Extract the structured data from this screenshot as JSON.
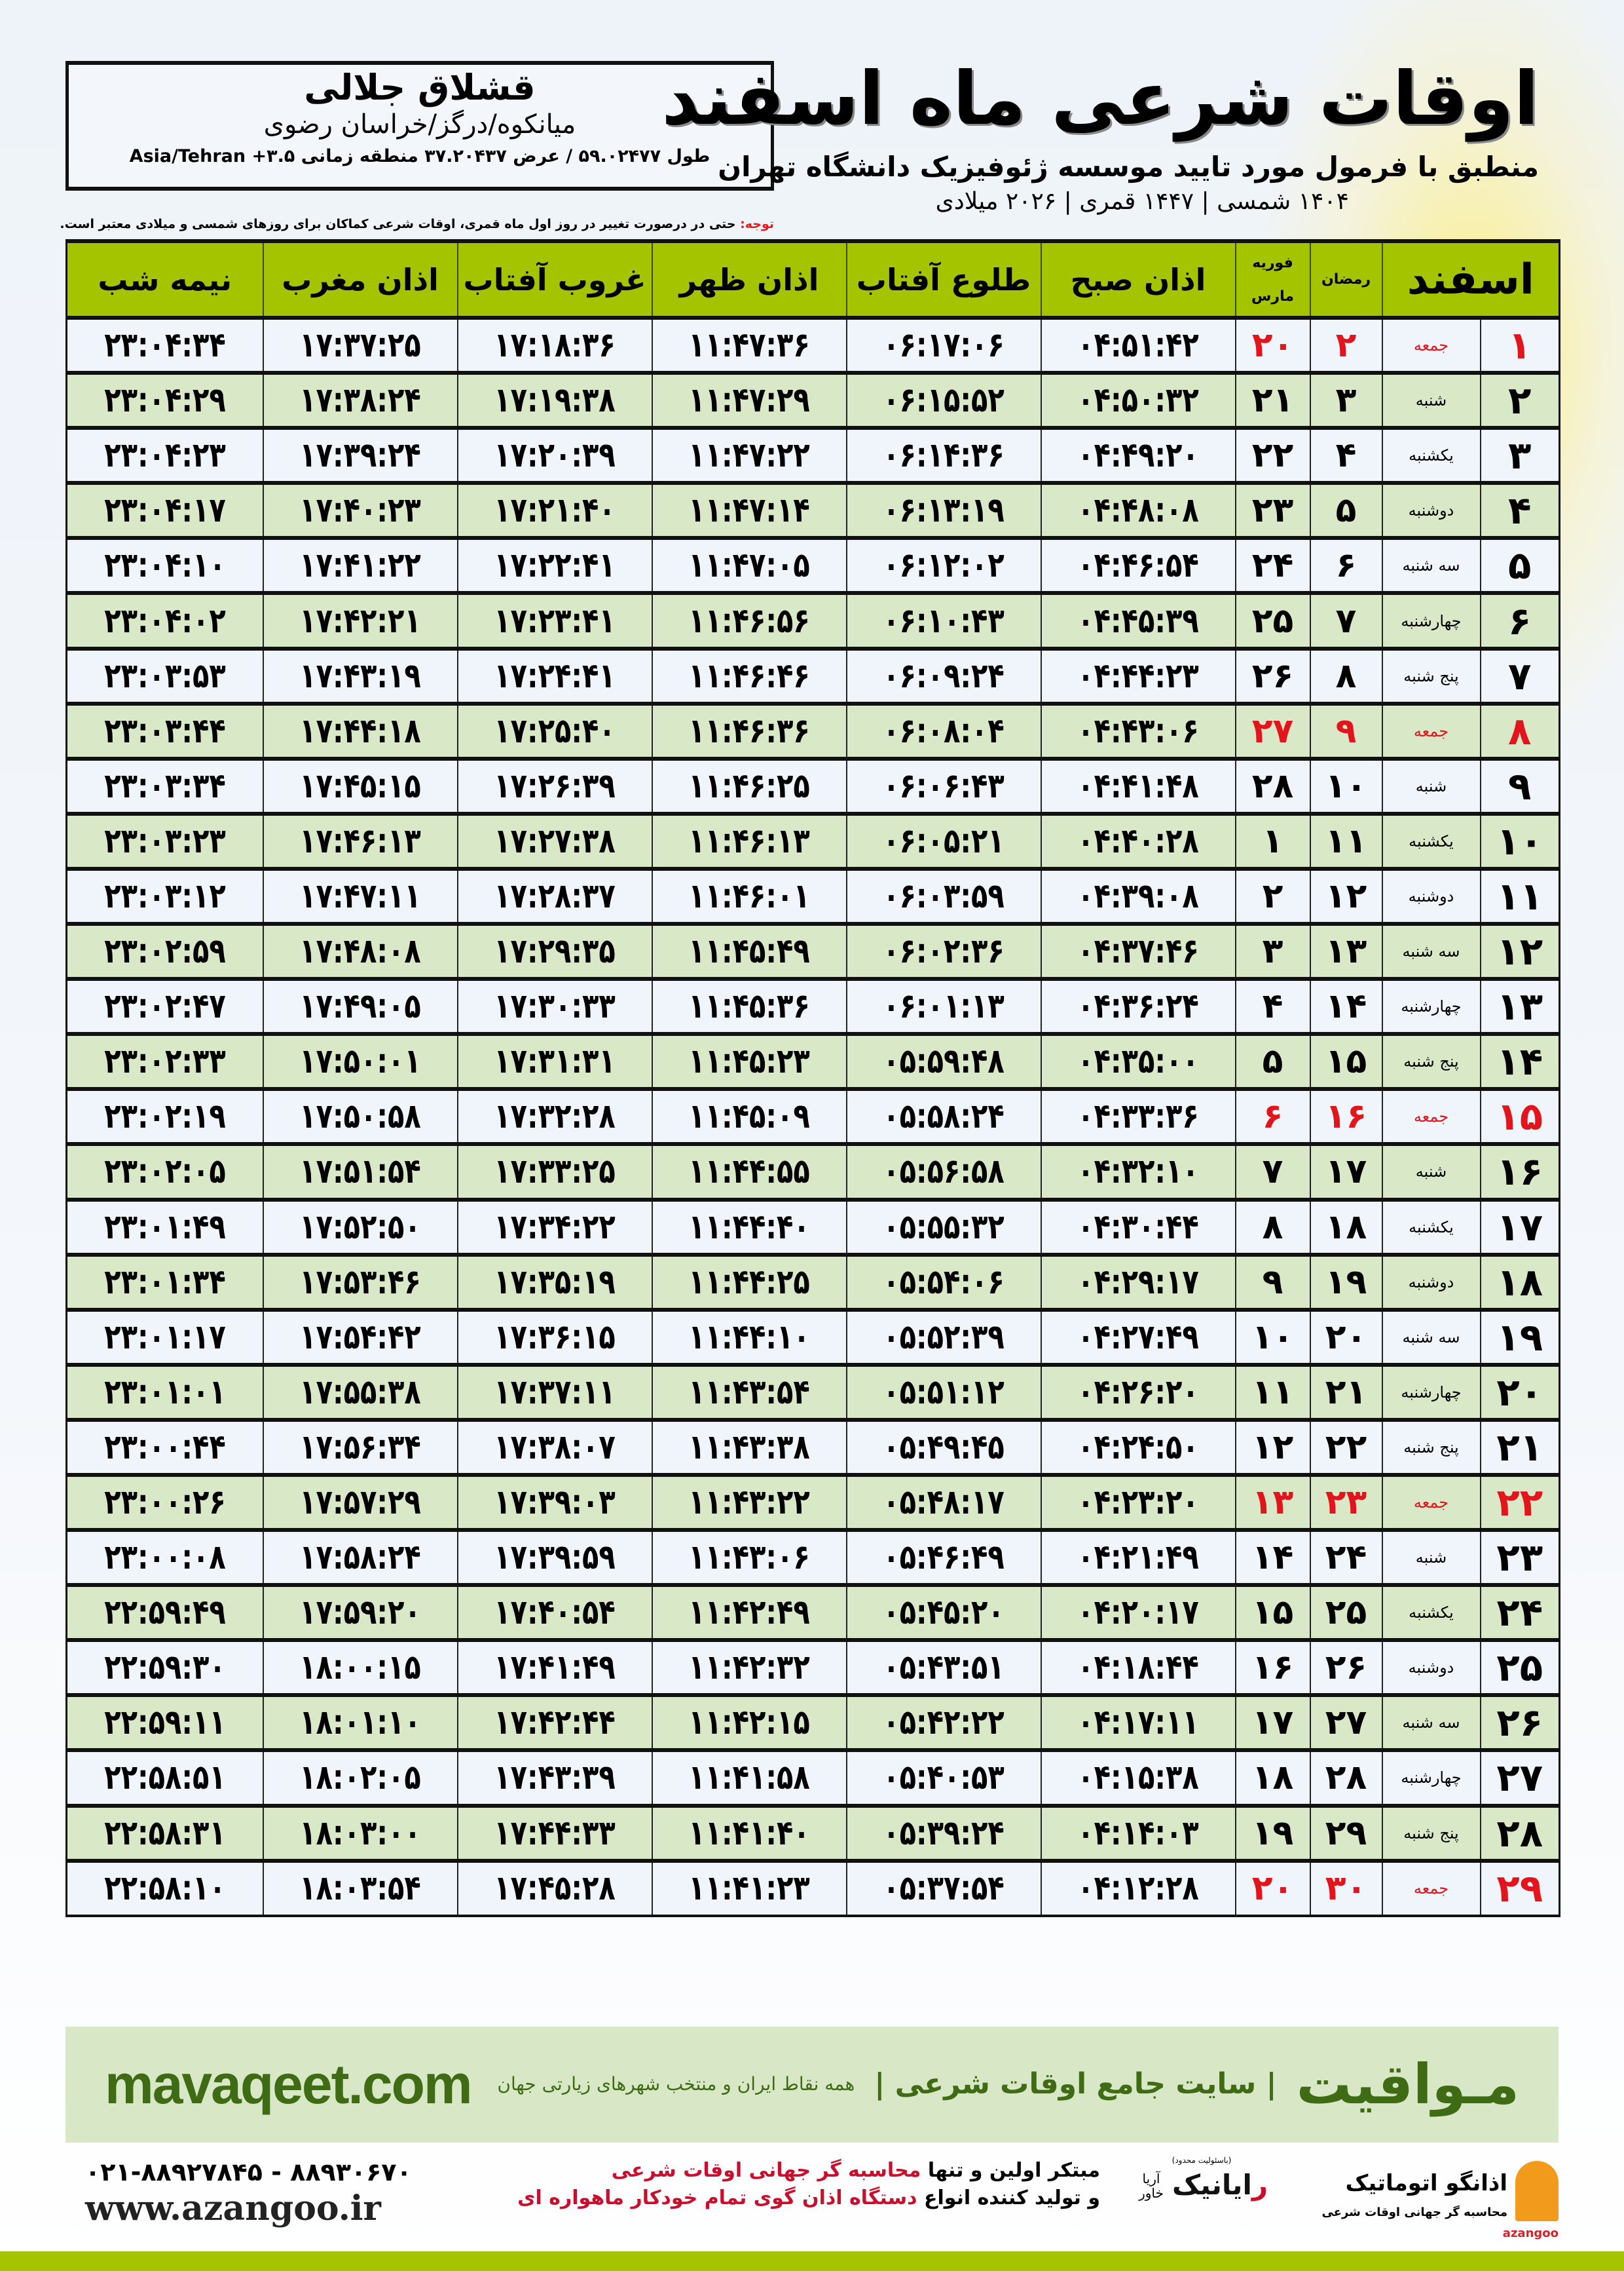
{
  "header": {
    "title": "اوقات شرعی ماه اسفند",
    "subtitle": "منطبق با فرمول مورد تایید موسسه ژئوفیزیک دانشگاه تهران",
    "dates": "۱۴۰۴ شمسی | ۱۴۴۷ قمری | ۲۰۲۶ میلادی"
  },
  "location": {
    "name": "قشلاق جلالی",
    "region": "میانکوه/درگز/خراسان رضوی",
    "coords": "طول ۵۹.۰۲۴۷۷ / عرض ۳۷.۲۰۴۳۷ منطقه زمانی Asia/Tehran +۳.۵"
  },
  "note": {
    "label": "توجه:",
    "text": " حتی در درصورت تغییر در روز اول ماه قمری، اوقات شرعی کماکان برای روزهای شمسی و میلادی معتبر است."
  },
  "table": {
    "headers": {
      "month": "اسفند",
      "ramadan": "رمضان",
      "feb": "فوریه",
      "march": "مارس",
      "fajr": "اذان صبح",
      "sunrise": "طلوع آفتاب",
      "dhuhr": "اذان ظهر",
      "sunset": "غروب آفتاب",
      "maghrib": "اذان مغرب",
      "midnight": "نیمه شب"
    },
    "friday_color": "#e3141b",
    "header_color": "#a5c400",
    "rows": [
      [
        "۱",
        "جمعه",
        "۲",
        "۲۰",
        "۰۴:۵۱:۴۲",
        "۰۶:۱۷:۰۶",
        "۱۱:۴۷:۳۶",
        "۱۷:۱۸:۳۶",
        "۱۷:۳۷:۲۵",
        "۲۳:۰۴:۳۴"
      ],
      [
        "۲",
        "شنبه",
        "۳",
        "۲۱",
        "۰۴:۵۰:۳۲",
        "۰۶:۱۵:۵۲",
        "۱۱:۴۷:۲۹",
        "۱۷:۱۹:۳۸",
        "۱۷:۳۸:۲۴",
        "۲۳:۰۴:۲۹"
      ],
      [
        "۳",
        "یکشنبه",
        "۴",
        "۲۲",
        "۰۴:۴۹:۲۰",
        "۰۶:۱۴:۳۶",
        "۱۱:۴۷:۲۲",
        "۱۷:۲۰:۳۹",
        "۱۷:۳۹:۲۴",
        "۲۳:۰۴:۲۳"
      ],
      [
        "۴",
        "دوشنبه",
        "۵",
        "۲۳",
        "۰۴:۴۸:۰۸",
        "۰۶:۱۳:۱۹",
        "۱۱:۴۷:۱۴",
        "۱۷:۲۱:۴۰",
        "۱۷:۴۰:۲۳",
        "۲۳:۰۴:۱۷"
      ],
      [
        "۵",
        "سه شنبه",
        "۶",
        "۲۴",
        "۰۴:۴۶:۵۴",
        "۰۶:۱۲:۰۲",
        "۱۱:۴۷:۰۵",
        "۱۷:۲۲:۴۱",
        "۱۷:۴۱:۲۲",
        "۲۳:۰۴:۱۰"
      ],
      [
        "۶",
        "چهارشنبه",
        "۷",
        "۲۵",
        "۰۴:۴۵:۳۹",
        "۰۶:۱۰:۴۳",
        "۱۱:۴۶:۵۶",
        "۱۷:۲۳:۴۱",
        "۱۷:۴۲:۲۱",
        "۲۳:۰۴:۰۲"
      ],
      [
        "۷",
        "پنج شنبه",
        "۸",
        "۲۶",
        "۰۴:۴۴:۲۳",
        "۰۶:۰۹:۲۴",
        "۱۱:۴۶:۴۶",
        "۱۷:۲۴:۴۱",
        "۱۷:۴۳:۱۹",
        "۲۳:۰۳:۵۳"
      ],
      [
        "۸",
        "جمعه",
        "۹",
        "۲۷",
        "۰۴:۴۳:۰۶",
        "۰۶:۰۸:۰۴",
        "۱۱:۴۶:۳۶",
        "۱۷:۲۵:۴۰",
        "۱۷:۴۴:۱۸",
        "۲۳:۰۳:۴۴"
      ],
      [
        "۹",
        "شنبه",
        "۱۰",
        "۲۸",
        "۰۴:۴۱:۴۸",
        "۰۶:۰۶:۴۳",
        "۱۱:۴۶:۲۵",
        "۱۷:۲۶:۳۹",
        "۱۷:۴۵:۱۵",
        "۲۳:۰۳:۳۴"
      ],
      [
        "۱۰",
        "یکشنبه",
        "۱۱",
        "۱",
        "۰۴:۴۰:۲۸",
        "۰۶:۰۵:۲۱",
        "۱۱:۴۶:۱۳",
        "۱۷:۲۷:۳۸",
        "۱۷:۴۶:۱۳",
        "۲۳:۰۳:۲۳"
      ],
      [
        "۱۱",
        "دوشنبه",
        "۱۲",
        "۲",
        "۰۴:۳۹:۰۸",
        "۰۶:۰۳:۵۹",
        "۱۱:۴۶:۰۱",
        "۱۷:۲۸:۳۷",
        "۱۷:۴۷:۱۱",
        "۲۳:۰۳:۱۲"
      ],
      [
        "۱۲",
        "سه شنبه",
        "۱۳",
        "۳",
        "۰۴:۳۷:۴۶",
        "۰۶:۰۲:۳۶",
        "۱۱:۴۵:۴۹",
        "۱۷:۲۹:۳۵",
        "۱۷:۴۸:۰۸",
        "۲۳:۰۲:۵۹"
      ],
      [
        "۱۳",
        "چهارشنبه",
        "۱۴",
        "۴",
        "۰۴:۳۶:۲۴",
        "۰۶:۰۱:۱۳",
        "۱۱:۴۵:۳۶",
        "۱۷:۳۰:۳۳",
        "۱۷:۴۹:۰۵",
        "۲۳:۰۲:۴۷"
      ],
      [
        "۱۴",
        "پنج شنبه",
        "۱۵",
        "۵",
        "۰۴:۳۵:۰۰",
        "۰۵:۵۹:۴۸",
        "۱۱:۴۵:۲۳",
        "۱۷:۳۱:۳۱",
        "۱۷:۵۰:۰۱",
        "۲۳:۰۲:۳۳"
      ],
      [
        "۱۵",
        "جمعه",
        "۱۶",
        "۶",
        "۰۴:۳۳:۳۶",
        "۰۵:۵۸:۲۴",
        "۱۱:۴۵:۰۹",
        "۱۷:۳۲:۲۸",
        "۱۷:۵۰:۵۸",
        "۲۳:۰۲:۱۹"
      ],
      [
        "۱۶",
        "شنبه",
        "۱۷",
        "۷",
        "۰۴:۳۲:۱۰",
        "۰۵:۵۶:۵۸",
        "۱۱:۴۴:۵۵",
        "۱۷:۳۳:۲۵",
        "۱۷:۵۱:۵۴",
        "۲۳:۰۲:۰۵"
      ],
      [
        "۱۷",
        "یکشنبه",
        "۱۸",
        "۸",
        "۰۴:۳۰:۴۴",
        "۰۵:۵۵:۳۲",
        "۱۱:۴۴:۴۰",
        "۱۷:۳۴:۲۲",
        "۱۷:۵۲:۵۰",
        "۲۳:۰۱:۴۹"
      ],
      [
        "۱۸",
        "دوشنبه",
        "۱۹",
        "۹",
        "۰۴:۲۹:۱۷",
        "۰۵:۵۴:۰۶",
        "۱۱:۴۴:۲۵",
        "۱۷:۳۵:۱۹",
        "۱۷:۵۳:۴۶",
        "۲۳:۰۱:۳۴"
      ],
      [
        "۱۹",
        "سه شنبه",
        "۲۰",
        "۱۰",
        "۰۴:۲۷:۴۹",
        "۰۵:۵۲:۳۹",
        "۱۱:۴۴:۱۰",
        "۱۷:۳۶:۱۵",
        "۱۷:۵۴:۴۲",
        "۲۳:۰۱:۱۷"
      ],
      [
        "۲۰",
        "چهارشنبه",
        "۲۱",
        "۱۱",
        "۰۴:۲۶:۲۰",
        "۰۵:۵۱:۱۲",
        "۱۱:۴۳:۵۴",
        "۱۷:۳۷:۱۱",
        "۱۷:۵۵:۳۸",
        "۲۳:۰۱:۰۱"
      ],
      [
        "۲۱",
        "پنج شنبه",
        "۲۲",
        "۱۲",
        "۰۴:۲۴:۵۰",
        "۰۵:۴۹:۴۵",
        "۱۱:۴۳:۳۸",
        "۱۷:۳۸:۰۷",
        "۱۷:۵۶:۳۴",
        "۲۳:۰۰:۴۴"
      ],
      [
        "۲۲",
        "جمعه",
        "۲۳",
        "۱۳",
        "۰۴:۲۳:۲۰",
        "۰۵:۴۸:۱۷",
        "۱۱:۴۳:۲۲",
        "۱۷:۳۹:۰۳",
        "۱۷:۵۷:۲۹",
        "۲۳:۰۰:۲۶"
      ],
      [
        "۲۳",
        "شنبه",
        "۲۴",
        "۱۴",
        "۰۴:۲۱:۴۹",
        "۰۵:۴۶:۴۹",
        "۱۱:۴۳:۰۶",
        "۱۷:۳۹:۵۹",
        "۱۷:۵۸:۲۴",
        "۲۳:۰۰:۰۸"
      ],
      [
        "۲۴",
        "یکشنبه",
        "۲۵",
        "۱۵",
        "۰۴:۲۰:۱۷",
        "۰۵:۴۵:۲۰",
        "۱۱:۴۲:۴۹",
        "۱۷:۴۰:۵۴",
        "۱۷:۵۹:۲۰",
        "۲۲:۵۹:۴۹"
      ],
      [
        "۲۵",
        "دوشنبه",
        "۲۶",
        "۱۶",
        "۰۴:۱۸:۴۴",
        "۰۵:۴۳:۵۱",
        "۱۱:۴۲:۳۲",
        "۱۷:۴۱:۴۹",
        "۱۸:۰۰:۱۵",
        "۲۲:۵۹:۳۰"
      ],
      [
        "۲۶",
        "سه شنبه",
        "۲۷",
        "۱۷",
        "۰۴:۱۷:۱۱",
        "۰۵:۴۲:۲۲",
        "۱۱:۴۲:۱۵",
        "۱۷:۴۲:۴۴",
        "۱۸:۰۱:۱۰",
        "۲۲:۵۹:۱۱"
      ],
      [
        "۲۷",
        "چهارشنبه",
        "۲۸",
        "۱۸",
        "۰۴:۱۵:۳۸",
        "۰۵:۴۰:۵۳",
        "۱۱:۴۱:۵۸",
        "۱۷:۴۳:۳۹",
        "۱۸:۰۲:۰۵",
        "۲۲:۵۸:۵۱"
      ],
      [
        "۲۸",
        "پنج شنبه",
        "۲۹",
        "۱۹",
        "۰۴:۱۴:۰۳",
        "۰۵:۳۹:۲۴",
        "۱۱:۴۱:۴۰",
        "۱۷:۴۴:۳۳",
        "۱۸:۰۳:۰۰",
        "۲۲:۵۸:۳۱"
      ],
      [
        "۲۹",
        "جمعه",
        "۳۰",
        "۲۰",
        "۰۴:۱۲:۲۸",
        "۰۵:۳۷:۵۴",
        "۱۱:۴۱:۲۳",
        "۱۷:۴۵:۲۸",
        "۱۸:۰۳:۵۴",
        "۲۲:۵۸:۱۰"
      ]
    ]
  },
  "footer": {
    "brand": "مـواقیت",
    "site_desc": "| سایت جامع اوقات شرعی |",
    "site_sub": "همه نقاط ایران و منتخب شهرهای زیارتی جهان",
    "url": "mavaqeet.com",
    "band_color": "#d8e7c6",
    "text_color": "#3e6b14"
  },
  "contact": {
    "phones": "۰۲۱-۸۸۹۲۷۸۴۵ - ۸۸۹۳۰۶۷۰",
    "website": "www.azangoo.ir",
    "slogan_line1_a": "مبتکر اولین و تنها ",
    "slogan_line1_b": "محاسبه گر جهانی اوقات شرعی",
    "slogan_line2_a": "و تولید کننده انواع ",
    "slogan_line2_b": "دستگاه اذان گوی تمام خودکار ماهواره ای"
  },
  "logos": {
    "raianik_note": "(باسئولیت محدود)",
    "raianik_main_a": "ر",
    "raianik_main_b": "ایانیک",
    "raianik_side": "آریا خاور",
    "azangoo_name": "اذانگو اتوماتیک",
    "azangoo_tag": "محاسبه گر جهانی اوقات شرعی",
    "azangoo_en": "azangoo"
  }
}
